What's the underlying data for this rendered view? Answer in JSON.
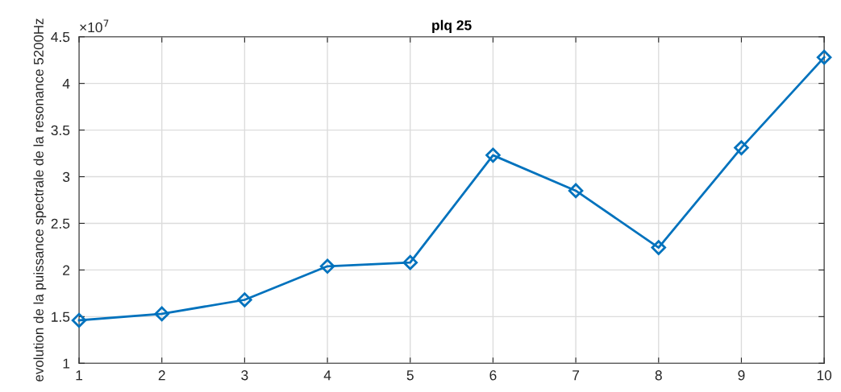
{
  "chart_data": {
    "type": "line",
    "title": "plq 25",
    "ylabel": "evolution de la puissance spectrale de la resonance 5200Hz",
    "annotations": [
      "×10$^{7}$"
    ],
    "x": [
      1,
      2,
      3,
      4,
      5,
      6,
      7,
      8,
      9,
      10
    ],
    "series": [
      {
        "color": "#0072bd",
        "values": [
          1.46,
          1.53,
          1.68,
          2.04,
          2.08,
          3.23,
          2.85,
          2.24,
          3.31,
          4.28
        ]
      }
    ],
    "xlim": [
      1,
      10
    ],
    "xticks": [
      1,
      2,
      3,
      4,
      5,
      6,
      7,
      8,
      9,
      10
    ],
    "ylim": [
      1,
      4.5
    ],
    "yticks": [
      1,
      1.5,
      2,
      2.5,
      3,
      3.5,
      4,
      4.5
    ],
    "grid": true,
    "marker": "diamond",
    "line_style": "solid"
  }
}
